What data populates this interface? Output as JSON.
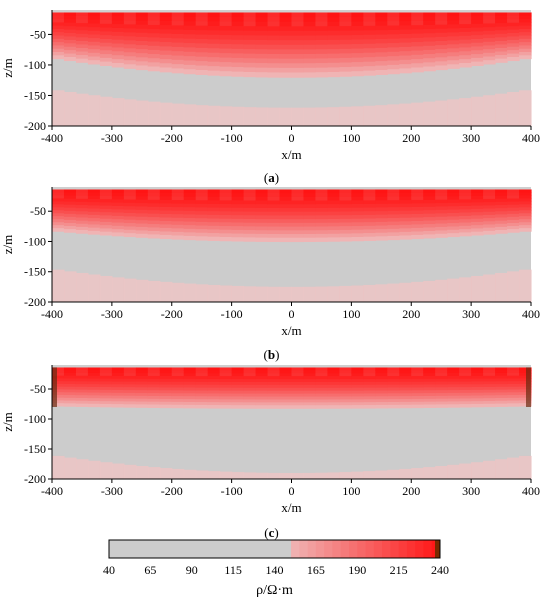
{
  "chart_data": [
    {
      "type": "heatmap",
      "panel_label": "(a)",
      "xlabel": "x/m",
      "ylabel": "z/m",
      "xlim": [
        -400,
        400
      ],
      "ylim": [
        -200,
        -10
      ],
      "x_ticks": [
        -400,
        -300,
        -200,
        -100,
        0,
        100,
        200,
        300,
        400
      ],
      "y_ticks": [
        -50,
        -100,
        -150,
        -200
      ],
      "background_rho": 40,
      "layers": [
        {
          "name_hint": "air/top band",
          "z_top": -10,
          "z_bottom": -14,
          "rho": 40
        },
        {
          "name_hint": "high-resistivity layer",
          "z_top": -14,
          "z_bottom": -88,
          "z_bottom_center": -120,
          "rho_max": 240,
          "rho_min": 150
        },
        {
          "name_hint": "deep faint layer",
          "z_top": -170,
          "z_bottom": -200,
          "rho": 75
        }
      ]
    },
    {
      "type": "heatmap",
      "panel_label": "(b)",
      "xlabel": "x/m",
      "ylabel": "z/m",
      "xlim": [
        -400,
        400
      ],
      "ylim": [
        -200,
        -10
      ],
      "x_ticks": [
        -400,
        -300,
        -200,
        -100,
        0,
        100,
        200,
        300,
        400
      ],
      "y_ticks": [
        -50,
        -100,
        -150,
        -200
      ],
      "background_rho": 40,
      "layers": [
        {
          "name_hint": "air/top band",
          "z_top": -10,
          "z_bottom": -14,
          "rho": 40
        },
        {
          "name_hint": "high-resistivity layer",
          "z_top": -14,
          "z_bottom": -82,
          "z_bottom_center": -100,
          "rho_max": 240,
          "rho_min": 150
        },
        {
          "name_hint": "deep faint layer",
          "z_top": -175,
          "z_bottom": -200,
          "rho": 70
        }
      ]
    },
    {
      "type": "heatmap",
      "panel_label": "(c)",
      "xlabel": "x/m",
      "ylabel": "z/m",
      "xlim": [
        -400,
        400
      ],
      "ylim": [
        -200,
        -10
      ],
      "x_ticks": [
        -400,
        -300,
        -200,
        -100,
        0,
        100,
        200,
        300,
        400
      ],
      "y_ticks": [
        -50,
        -100,
        -150,
        -200
      ],
      "background_rho": 40,
      "layers": [
        {
          "name_hint": "air/top band",
          "z_top": -10,
          "z_bottom": -14,
          "rho": 40
        },
        {
          "name_hint": "high-resistivity layer",
          "z_top": -14,
          "z_bottom": -78,
          "z_bottom_center": -82,
          "rho_max": 240,
          "rho_min": 150
        },
        {
          "name_hint": "deep faint layer",
          "z_top": -190,
          "z_bottom": -200,
          "rho": 60
        }
      ]
    }
  ],
  "colorbar": {
    "label": "ρ/Ω·m",
    "min": 40,
    "max": 240,
    "tick_values": [
      40,
      65,
      90,
      115,
      140,
      165,
      190,
      215,
      240
    ],
    "tick_labels": [
      "40",
      "65",
      "90",
      "115",
      "140",
      "165",
      "190",
      "215",
      "240"
    ],
    "colors": {
      "low": "#cccccc",
      "mid": "#ff9a9a",
      "high": "#ff1a1a",
      "top": "#7a2a00"
    }
  }
}
